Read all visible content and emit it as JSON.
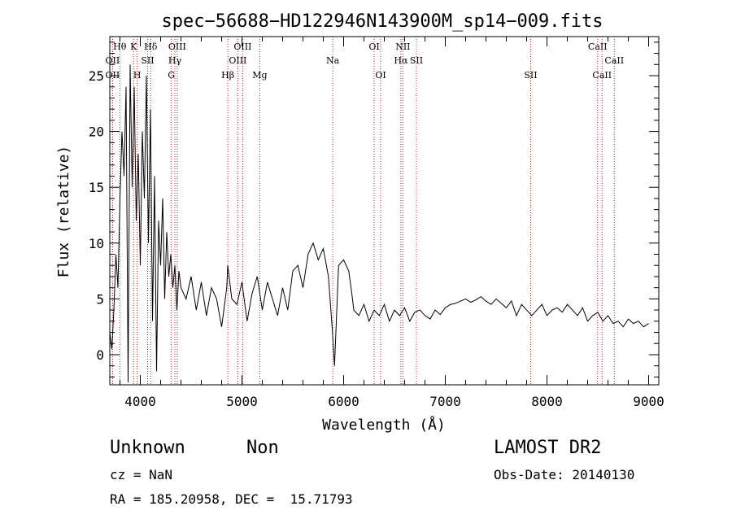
{
  "chart_data": {
    "type": "line",
    "title": "spec−56688−HD122946N143900M_sp14−009.fits",
    "xlabel": "Wavelength (Å)",
    "ylabel": "Flux (relative)",
    "xlim": [
      3700,
      9100
    ],
    "ylim": [
      -2.7,
      28.5
    ],
    "xticks": [
      4000,
      5000,
      6000,
      7000,
      8000,
      9000
    ],
    "yticks": [
      0,
      5,
      10,
      15,
      20,
      25
    ],
    "grid": false,
    "legend": "none",
    "series": [
      {
        "x": [
          3700,
          3720,
          3740,
          3760,
          3780,
          3800,
          3820,
          3840,
          3860,
          3880,
          3900,
          3920,
          3940,
          3960,
          3980,
          4000,
          4020,
          4040,
          4060,
          4080,
          4100,
          4120,
          4140,
          4160,
          4180,
          4200,
          4220,
          4240,
          4260,
          4280,
          4300,
          4320,
          4340,
          4360,
          4380,
          4400,
          4450,
          4500,
          4550,
          4600,
          4650,
          4700,
          4750,
          4800,
          4850,
          4860,
          4900,
          4950,
          5000,
          5050,
          5100,
          5150,
          5200,
          5250,
          5300,
          5350,
          5400,
          5450,
          5500,
          5550,
          5600,
          5650,
          5700,
          5750,
          5800,
          5850,
          5890,
          5910,
          5950,
          6000,
          6050,
          6080,
          6100,
          6150,
          6200,
          6250,
          6300,
          6350,
          6400,
          6450,
          6500,
          6550,
          6600,
          6650,
          6700,
          6750,
          6800,
          6850,
          6900,
          6950,
          7000,
          7050,
          7100,
          7150,
          7200,
          7250,
          7300,
          7350,
          7400,
          7450,
          7500,
          7550,
          7600,
          7650,
          7700,
          7750,
          7800,
          7850,
          7900,
          7950,
          8000,
          8050,
          8100,
          8150,
          8200,
          8250,
          8300,
          8350,
          8400,
          8450,
          8500,
          8550,
          8600,
          8650,
          8700,
          8750,
          8800,
          8850,
          8900,
          8950,
          9000
        ],
        "values": [
          2.0,
          0.5,
          4.0,
          9.0,
          6.0,
          14.0,
          20.0,
          16.0,
          24.0,
          -2.5,
          26.0,
          15.0,
          24.0,
          12.0,
          18.0,
          8.0,
          20.0,
          14.0,
          25.0,
          10.0,
          22.0,
          3.0,
          16.0,
          -1.5,
          12.0,
          8.0,
          14.0,
          5.0,
          11.0,
          7.0,
          9.0,
          6.0,
          8.0,
          4.0,
          7.5,
          6.0,
          5.0,
          7.0,
          4.0,
          6.5,
          3.5,
          6.0,
          5.0,
          2.5,
          6.0,
          8.0,
          5.0,
          4.5,
          6.5,
          3.0,
          5.5,
          7.0,
          4.0,
          6.5,
          5.0,
          3.5,
          6.0,
          4.0,
          7.5,
          8.0,
          6.0,
          9.0,
          10.0,
          8.5,
          9.5,
          7.0,
          2.0,
          -1.0,
          8.0,
          8.5,
          7.5,
          5.5,
          4.0,
          3.5,
          4.5,
          3.0,
          4.0,
          3.5,
          4.5,
          3.0,
          4.0,
          3.5,
          4.2,
          3.0,
          3.8,
          4.0,
          3.5,
          3.2,
          4.0,
          3.6,
          4.2,
          4.5,
          4.6,
          4.8,
          5.0,
          4.7,
          4.9,
          5.2,
          4.8,
          4.5,
          5.0,
          4.6,
          4.2,
          4.8,
          3.5,
          4.5,
          4.0,
          3.5,
          4.0,
          4.5,
          3.5,
          4.0,
          4.2,
          3.8,
          4.5,
          4.0,
          3.5,
          4.2,
          3.0,
          3.5,
          3.8,
          3.0,
          3.5,
          2.8,
          3.0,
          2.5,
          3.2,
          2.8,
          3.0,
          2.5,
          2.8
        ]
      }
    ],
    "lines": [
      {
        "label": "Hθ",
        "x": 3798,
        "row": 0
      },
      {
        "label": "OII",
        "x": 3727,
        "row": 1
      },
      {
        "label": "OII",
        "x": 3727,
        "row": 2
      },
      {
        "label": "K",
        "x": 3934,
        "row": 0
      },
      {
        "label": "H",
        "x": 3969,
        "row": 2
      },
      {
        "label": "SII",
        "x": 4072,
        "row": 1
      },
      {
        "label": "Hδ",
        "x": 4102,
        "row": 0
      },
      {
        "label": "OIII",
        "x": 4363,
        "row": 0
      },
      {
        "label": "Hγ",
        "x": 4340,
        "row": 1
      },
      {
        "label": "G",
        "x": 4305,
        "row": 2
      },
      {
        "label": "Hβ",
        "x": 4861,
        "row": 2
      },
      {
        "label": "OIII",
        "x": 5007,
        "row": 0
      },
      {
        "label": "OIII",
        "x": 4959,
        "row": 1
      },
      {
        "label": "Mg",
        "x": 5175,
        "row": 2
      },
      {
        "label": "Na",
        "x": 5893,
        "row": 1
      },
      {
        "label": "OI",
        "x": 6300,
        "row": 0
      },
      {
        "label": "OI",
        "x": 6364,
        "row": 2
      },
      {
        "label": "NII",
        "x": 6583,
        "row": 0
      },
      {
        "label": "Hα",
        "x": 6563,
        "row": 1
      },
      {
        "label": "SII",
        "x": 6716,
        "row": 1
      },
      {
        "label": "SII",
        "x": 7840,
        "row": 2
      },
      {
        "label": "CaII",
        "x": 8498,
        "row": 0
      },
      {
        "label": "CaII",
        "x": 8662,
        "row": 1
      },
      {
        "label": "CaII",
        "x": 8542,
        "row": 2
      }
    ]
  },
  "info": {
    "class": "Unknown",
    "subclass": "Non",
    "survey": "LAMOST DR2",
    "cz": "cz = NaN",
    "obs_date": "Obs-Date: 20140130",
    "radec": "RA = 185.20958, DEC =  15.71793"
  },
  "colors": {
    "spectrum": "#000000",
    "line_marker": "#b22222",
    "axis": "#000000"
  }
}
